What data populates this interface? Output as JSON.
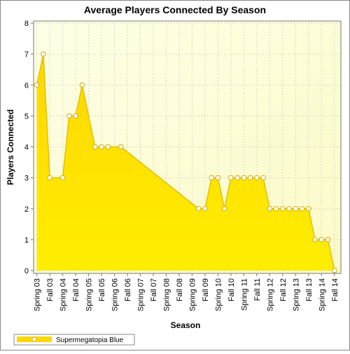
{
  "chart_data": {
    "type": "area",
    "title": "Average Players Connected By Season",
    "x_label": "Season",
    "y_label": "Players Connected",
    "xlim": [
      -0.25,
      23.5
    ],
    "xticks": [
      {
        "value": 0,
        "label": "Spring 03"
      },
      {
        "value": 1,
        "label": "Fall 03"
      },
      {
        "value": 2,
        "label": "Spring 04"
      },
      {
        "value": 3,
        "label": "Fall 04"
      },
      {
        "value": 4,
        "label": "Spring 05"
      },
      {
        "value": 5,
        "label": "Fall 05"
      },
      {
        "value": 6,
        "label": "Spring 06"
      },
      {
        "value": 7,
        "label": "Fall 06"
      },
      {
        "value": 8,
        "label": "Spring 07"
      },
      {
        "value": 9,
        "label": "Fall 07"
      },
      {
        "value": 10,
        "label": "Spring 08"
      },
      {
        "value": 11,
        "label": "Fall 08"
      },
      {
        "value": 12,
        "label": "Spring 09"
      },
      {
        "value": 13,
        "label": "Fall 09"
      },
      {
        "value": 14,
        "label": "Spring 10"
      },
      {
        "value": 15,
        "label": "Fall 10"
      },
      {
        "value": 16,
        "label": "Spring 11"
      },
      {
        "value": 17,
        "label": "Fall 11"
      },
      {
        "value": 18,
        "label": "Spring 12"
      },
      {
        "value": 19,
        "label": "Fall 12"
      },
      {
        "value": 20,
        "label": "Spring 13"
      },
      {
        "value": 21,
        "label": "Fall 13"
      },
      {
        "value": 22,
        "label": "Spring 14"
      },
      {
        "value": 23,
        "label": "Fall 14"
      }
    ],
    "ylim": [
      0,
      8
    ],
    "yticks": [
      0,
      1,
      2,
      3,
      4,
      5,
      6,
      7,
      8
    ],
    "grid": true,
    "legend": "bottom-left",
    "series": [
      {
        "name": "Supermegatopia Blue",
        "color": "#ffd700",
        "x": [
          0,
          0.5,
          1,
          2,
          2.5,
          3,
          3.5,
          4.5,
          5,
          5.5,
          6.5,
          12.5,
          13,
          13.5,
          14,
          14.5,
          15,
          15.5,
          16,
          16.5,
          17,
          17.5,
          18,
          18.5,
          19,
          19.5,
          20,
          20.5,
          21,
          21.5,
          22,
          22.5,
          23
        ],
        "values": [
          6,
          7,
          3,
          3,
          5,
          5,
          6,
          4,
          4,
          4,
          4,
          2,
          2,
          3,
          3,
          2,
          3,
          3,
          3,
          3,
          3,
          3,
          2,
          2,
          2,
          2,
          2,
          2,
          2,
          1,
          1,
          1,
          0
        ]
      }
    ]
  }
}
